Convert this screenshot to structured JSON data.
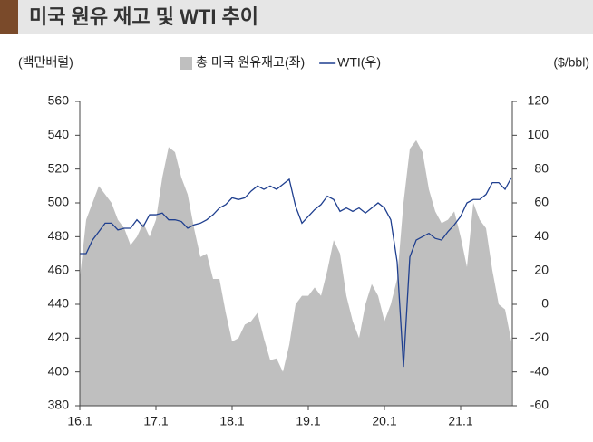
{
  "title": "미국 원유 재고 및 WTI 추이",
  "chart_data": {
    "type": "area-line",
    "y_label": "(백만배럴)",
    "y2_label": "($/bbl)",
    "categories": [
      "16.1",
      null,
      null,
      null,
      null,
      null,
      null,
      null,
      null,
      null,
      null,
      null,
      "17.1",
      null,
      null,
      null,
      null,
      null,
      null,
      null,
      null,
      null,
      null,
      null,
      "18.1",
      null,
      null,
      null,
      null,
      null,
      null,
      null,
      null,
      null,
      null,
      null,
      "19.1",
      null,
      null,
      null,
      null,
      null,
      null,
      null,
      null,
      null,
      null,
      null,
      "20.1",
      null,
      null,
      null,
      null,
      null,
      null,
      null,
      null,
      null,
      null,
      null,
      "21.1",
      null,
      null,
      null,
      null,
      null,
      null,
      null,
      null
    ],
    "series": [
      {
        "name": "총 미국 원유재고(좌)",
        "color": "#bfbfbf",
        "axis": "y",
        "values": [
          455,
          490,
          500,
          510,
          505,
          500,
          490,
          485,
          475,
          480,
          488,
          480,
          490,
          515,
          533,
          530,
          515,
          505,
          485,
          468,
          470,
          455,
          455,
          435,
          418,
          420,
          428,
          430,
          435,
          420,
          407,
          408,
          400,
          416,
          440,
          445,
          445,
          450,
          445,
          460,
          478,
          470,
          445,
          430,
          420,
          440,
          452,
          445,
          430,
          440,
          455,
          500,
          532,
          537,
          530,
          508,
          495,
          488,
          490,
          495,
          480,
          462,
          500,
          490,
          485,
          460,
          440,
          437,
          418
        ]
      },
      {
        "name": "WTI(우)",
        "color": "#1f3f8f",
        "axis": "y2",
        "values": [
          30,
          30,
          38,
          43,
          48,
          48,
          44,
          45,
          45,
          50,
          46,
          53,
          53,
          54,
          50,
          50,
          49,
          45,
          47,
          48,
          50,
          53,
          57,
          59,
          63,
          62,
          63,
          67,
          70,
          68,
          70,
          68,
          71,
          74,
          58,
          48,
          52,
          56,
          59,
          64,
          62,
          55,
          57,
          55,
          57,
          54,
          57,
          60,
          57,
          50,
          25,
          -37,
          28,
          38,
          40,
          42,
          39,
          38,
          43,
          47,
          52,
          60,
          62,
          62,
          65,
          72,
          72,
          68,
          75
        ]
      }
    ],
    "ylim": [
      380,
      560
    ],
    "yticks": [
      380,
      400,
      420,
      440,
      460,
      480,
      500,
      520,
      540,
      560
    ],
    "y2lim": [
      -60,
      120
    ],
    "y2ticks": [
      -60,
      -40,
      -20,
      0,
      20,
      40,
      60,
      80,
      100,
      120
    ]
  }
}
